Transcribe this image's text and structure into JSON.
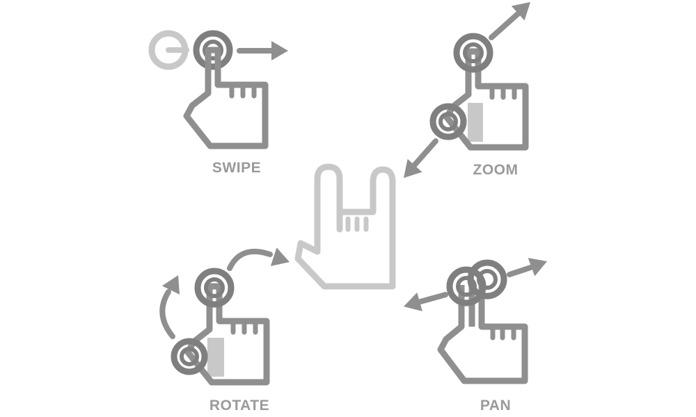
{
  "labels": {
    "swipe": "SWIPE",
    "zoom": "ZOOM",
    "rotate": "ROTATE",
    "pan": "PAN"
  },
  "colors": {
    "dark": "#7f7f7f",
    "mid": "#8f8f8f",
    "light": "#c8c8c8",
    "label": "#9a9a9a",
    "background": "#ffffff"
  },
  "icons": {
    "swipe": "hand-swipe-icon",
    "zoom": "hand-zoom-icon",
    "rotate": "hand-rotate-icon",
    "pan": "hand-pan-icon",
    "center": "hand-rock-gesture-icon"
  }
}
